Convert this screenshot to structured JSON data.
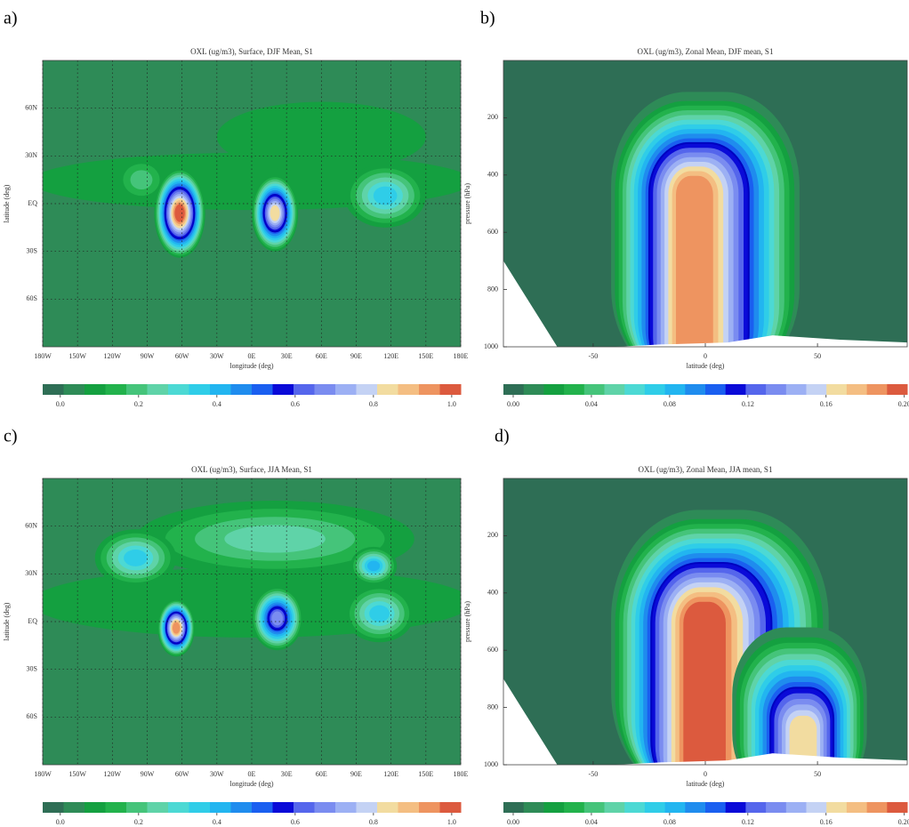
{
  "chart_data": [
    {
      "type": "map-contour",
      "label": "a)",
      "title": "OXL (ug/m3), Surface, DJF Mean, S1",
      "x_label": "longitude (deg)",
      "y_label": "latitude (deg)",
      "xlim": [
        -180,
        180
      ],
      "ylim": [
        -90,
        90
      ],
      "xticks": [
        {
          "value": -180,
          "label": "180W"
        },
        {
          "value": -150,
          "label": "150W"
        },
        {
          "value": -120,
          "label": "120W"
        },
        {
          "value": -90,
          "label": "90W"
        },
        {
          "value": -60,
          "label": "60W"
        },
        {
          "value": -30,
          "label": "30W"
        },
        {
          "value": 0,
          "label": "0E"
        },
        {
          "value": 30,
          "label": "30E"
        },
        {
          "value": 60,
          "label": "60E"
        },
        {
          "value": 90,
          "label": "90E"
        },
        {
          "value": 120,
          "label": "120E"
        },
        {
          "value": 150,
          "label": "150E"
        },
        {
          "value": 180,
          "label": "180E"
        }
      ],
      "yticks": [
        {
          "value": 60,
          "label": "60N"
        },
        {
          "value": 30,
          "label": "30N"
        },
        {
          "value": 0,
          "label": "EQ"
        },
        {
          "value": -30,
          "label": "30S"
        },
        {
          "value": -60,
          "label": "60S"
        }
      ],
      "grid": true,
      "colorbar": {
        "clim": [
          -0.045,
          1.023
        ],
        "ticks": [
          {
            "value": 0,
            "label": "0.0"
          },
          0.2,
          0.4,
          0.6,
          0.8,
          {
            "value": 1,
            "label": "1.0"
          }
        ],
        "colors": [
          "#2e6e55",
          "#2e8b57",
          "#14a040",
          "#22b24c",
          "#45c47a",
          "#5fd3a8",
          "#4cd9d4",
          "#2fcde8",
          "#22b5f0",
          "#1f8cee",
          "#1a5ff0",
          "#0a0ad8",
          "#5566ec",
          "#7a8cf0",
          "#9cb0f4",
          "#c4d2f4",
          "#f2dca0",
          "#f4be82",
          "#ee9460",
          "#dc5a3e"
        ]
      }
    },
    {
      "type": "zonal-contour",
      "label": "b)",
      "title": "OXL (ug/m3), Zonal Mean, DJF mean, S1",
      "x_label": "latitude (deg)",
      "y_label": "pressure (hPa)",
      "xlim": [
        -90,
        90
      ],
      "ylim": [
        1000,
        0
      ],
      "xticks": [
        -50,
        0,
        50
      ],
      "yticks": [
        200,
        400,
        600,
        800,
        1000
      ],
      "colorbar": {
        "clim": [
          -0.005,
          0.2015
        ],
        "ticks": [
          {
            "value": 0,
            "label": "0.00"
          },
          0.04,
          0.08,
          0.12,
          0.16,
          {
            "value": 0.2,
            "label": "0.20"
          }
        ],
        "colors": [
          "#2e6e55",
          "#2e8b57",
          "#14a040",
          "#22b24c",
          "#45c47a",
          "#5fd3a8",
          "#4cd9d4",
          "#2fcde8",
          "#22b5f0",
          "#1f8cee",
          "#1a5ff0",
          "#0a0ad8",
          "#5566ec",
          "#7a8cf0",
          "#9cb0f4",
          "#c4d2f4",
          "#f2dca0",
          "#f4be82",
          "#ee9460",
          "#dc5a3e"
        ]
      }
    },
    {
      "type": "map-contour",
      "label": "c)",
      "title": "OXL (ug/m3), Surface, JJA Mean, S1",
      "x_label": "longitude (deg)",
      "y_label": "latitude (deg)",
      "xlim": [
        -180,
        180
      ],
      "ylim": [
        -90,
        90
      ],
      "xticks": [
        {
          "value": -180,
          "label": "180W"
        },
        {
          "value": -150,
          "label": "150W"
        },
        {
          "value": -120,
          "label": "120W"
        },
        {
          "value": -90,
          "label": "90W"
        },
        {
          "value": -60,
          "label": "60W"
        },
        {
          "value": -30,
          "label": "30W"
        },
        {
          "value": 0,
          "label": "0E"
        },
        {
          "value": 30,
          "label": "30E"
        },
        {
          "value": 60,
          "label": "60E"
        },
        {
          "value": 90,
          "label": "90E"
        },
        {
          "value": 120,
          "label": "120E"
        },
        {
          "value": 150,
          "label": "150E"
        },
        {
          "value": 180,
          "label": "180E"
        }
      ],
      "yticks": [
        {
          "value": 60,
          "label": "60N"
        },
        {
          "value": 30,
          "label": "30N"
        },
        {
          "value": 0,
          "label": "EQ"
        },
        {
          "value": -30,
          "label": "30S"
        },
        {
          "value": -60,
          "label": "60S"
        }
      ],
      "grid": true,
      "colorbar": {
        "clim": [
          -0.045,
          1.023
        ],
        "ticks": [
          {
            "value": 0,
            "label": "0.0"
          },
          0.2,
          0.4,
          0.6,
          0.8,
          {
            "value": 1,
            "label": "1.0"
          }
        ],
        "colors": [
          "#2e6e55",
          "#2e8b57",
          "#14a040",
          "#22b24c",
          "#45c47a",
          "#5fd3a8",
          "#4cd9d4",
          "#2fcde8",
          "#22b5f0",
          "#1f8cee",
          "#1a5ff0",
          "#0a0ad8",
          "#5566ec",
          "#7a8cf0",
          "#9cb0f4",
          "#c4d2f4",
          "#f2dca0",
          "#f4be82",
          "#ee9460",
          "#dc5a3e"
        ]
      }
    },
    {
      "type": "zonal-contour",
      "label": "d)",
      "title": "OXL (ug/m3), Zonal Mean, JJA mean, S1",
      "x_label": "latitude (deg)",
      "y_label": "pressure (hPa)",
      "xlim": [
        -90,
        90
      ],
      "ylim": [
        1000,
        0
      ],
      "xticks": [
        -50,
        0,
        50
      ],
      "yticks": [
        200,
        400,
        600,
        800,
        1000
      ],
      "colorbar": {
        "clim": [
          -0.005,
          0.2015
        ],
        "ticks": [
          {
            "value": 0,
            "label": "0.00"
          },
          0.04,
          0.08,
          0.12,
          0.16,
          {
            "value": 0.2,
            "label": "0.20"
          }
        ],
        "colors": [
          "#2e6e55",
          "#2e8b57",
          "#14a040",
          "#22b24c",
          "#45c47a",
          "#5fd3a8",
          "#4cd9d4",
          "#2fcde8",
          "#22b5f0",
          "#1f8cee",
          "#1a5ff0",
          "#0a0ad8",
          "#5566ec",
          "#7a8cf0",
          "#9cb0f4",
          "#c4d2f4",
          "#f2dca0",
          "#f4be82",
          "#ee9460",
          "#dc5a3e"
        ]
      }
    }
  ]
}
